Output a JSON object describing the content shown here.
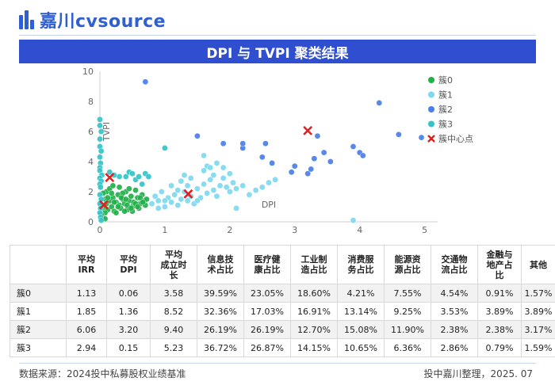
{
  "brand": {
    "name": "嘉川cvsource",
    "color": "#2f5fd0"
  },
  "title": "DPI 与 TVPI 聚类结果",
  "colors": {
    "banner": "#2f4fd0",
    "cluster0": "#22b04b",
    "cluster1": "#7fd8ef",
    "cluster2": "#4a7ee8",
    "cluster3": "#33c4c9",
    "center": "#e02020"
  },
  "chart_data": {
    "type": "scatter",
    "title": "DPI 与 TVPI 聚类结果",
    "xlabel": "DPI",
    "ylabel": "TVPI",
    "xlim": [
      0,
      5.2
    ],
    "ylim": [
      0,
      10
    ],
    "xticks": [
      0,
      1,
      2,
      3,
      4,
      5
    ],
    "yticks": [
      0,
      2,
      4,
      6,
      8,
      10
    ],
    "legend": {
      "position": "top-right",
      "entries": [
        "簇0",
        "簇1",
        "簇2",
        "簇3",
        "簇中心点"
      ]
    },
    "series": [
      {
        "name": "簇0",
        "points": [
          [
            0.02,
            1.1
          ],
          [
            0.05,
            0.9
          ],
          [
            0.08,
            1.5
          ],
          [
            0.1,
            1.2
          ],
          [
            0.12,
            0.8
          ],
          [
            0.15,
            1.4
          ],
          [
            0.18,
            1.0
          ],
          [
            0.2,
            1.6
          ],
          [
            0.22,
            0.7
          ],
          [
            0.25,
            1.3
          ],
          [
            0.28,
            1.8
          ],
          [
            0.3,
            1.1
          ],
          [
            0.32,
            0.9
          ],
          [
            0.35,
            1.5
          ],
          [
            0.38,
            1.2
          ],
          [
            0.4,
            2.0
          ],
          [
            0.42,
            0.8
          ],
          [
            0.45,
            1.4
          ],
          [
            0.48,
            1.7
          ],
          [
            0.5,
            1.0
          ],
          [
            0.52,
            1.3
          ],
          [
            0.55,
            2.1
          ],
          [
            0.58,
            1.6
          ],
          [
            0.6,
            0.9
          ],
          [
            0.62,
            1.2
          ],
          [
            0.65,
            1.8
          ],
          [
            0.68,
            1.4
          ],
          [
            0.7,
            1.1
          ],
          [
            0.1,
            2.0
          ],
          [
            0.15,
            2.2
          ],
          [
            0.2,
            2.4
          ],
          [
            0.05,
            1.9
          ],
          [
            0.3,
            2.3
          ],
          [
            0.35,
            1.9
          ],
          [
            0.45,
            2.2
          ],
          [
            0.25,
            0.6
          ],
          [
            0.38,
            0.7
          ],
          [
            0.5,
            0.7
          ],
          [
            0.08,
            0.6
          ],
          [
            0.72,
            1.5
          ],
          [
            0.18,
            1.9
          ],
          [
            0.28,
            1.0
          ],
          [
            0.42,
            1.1
          ],
          [
            0.62,
            1.6
          ],
          [
            0.55,
            1.2
          ],
          [
            0.33,
            1.6
          ],
          [
            0.48,
            0.9
          ],
          [
            0.12,
            1.6
          ],
          [
            0.22,
            1.3
          ],
          [
            0.4,
            1.5
          ],
          [
            0.58,
            1.0
          ],
          [
            0.66,
            1.3
          ],
          [
            0.04,
            0.3
          ],
          [
            0.08,
            0.2
          ],
          [
            0.02,
            0.5
          ]
        ]
      },
      {
        "name": "簇1",
        "points": [
          [
            0.8,
            1.2
          ],
          [
            0.9,
            1.4
          ],
          [
            1.0,
            1.0
          ],
          [
            1.05,
            1.6
          ],
          [
            1.1,
            1.3
          ],
          [
            1.15,
            1.8
          ],
          [
            1.2,
            1.1
          ],
          [
            1.25,
            1.5
          ],
          [
            1.3,
            2.0
          ],
          [
            1.35,
            1.4
          ],
          [
            1.4,
            1.7
          ],
          [
            1.45,
            1.2
          ],
          [
            1.5,
            2.2
          ],
          [
            1.55,
            1.6
          ],
          [
            1.6,
            2.5
          ],
          [
            1.65,
            1.9
          ],
          [
            1.7,
            2.8
          ],
          [
            1.75,
            2.1
          ],
          [
            1.8,
            1.7
          ],
          [
            1.85,
            2.4
          ],
          [
            1.9,
            2.9
          ],
          [
            1.95,
            2.3
          ],
          [
            2.0,
            2.0
          ],
          [
            2.05,
            2.6
          ],
          [
            2.1,
            2.2
          ],
          [
            2.2,
            2.4
          ],
          [
            2.3,
            1.8
          ],
          [
            2.4,
            2.1
          ],
          [
            2.5,
            2.3
          ],
          [
            2.6,
            2.6
          ],
          [
            2.7,
            2.8
          ],
          [
            1.6,
            3.4
          ],
          [
            1.65,
            3.7
          ],
          [
            1.7,
            3.6
          ],
          [
            1.8,
            3.9
          ],
          [
            1.9,
            3.6
          ],
          [
            1.3,
            3.1
          ],
          [
            1.4,
            2.9
          ],
          [
            1.1,
            2.4
          ],
          [
            1.25,
            2.7
          ],
          [
            1.6,
            4.4
          ],
          [
            0.85,
            1.7
          ],
          [
            0.95,
            2.0
          ],
          [
            1.5,
            1.4
          ],
          [
            1.75,
            3.1
          ],
          [
            2.0,
            3.2
          ],
          [
            0.9,
            0.9
          ],
          [
            3.9,
            0.1
          ],
          [
            2.1,
            0.9
          ],
          [
            1.0,
            1.4
          ],
          [
            1.2,
            2.1
          ],
          [
            1.35,
            2.4
          ]
        ]
      },
      {
        "name": "簇2",
        "points": [
          [
            0.7,
            9.3
          ],
          [
            1.5,
            5.7
          ],
          [
            1.9,
            5.2
          ],
          [
            2.2,
            4.9
          ],
          [
            2.2,
            5.2
          ],
          [
            2.55,
            5.2
          ],
          [
            2.5,
            4.3
          ],
          [
            2.65,
            3.9
          ],
          [
            2.95,
            3.3
          ],
          [
            3.0,
            3.7
          ],
          [
            3.2,
            3.2
          ],
          [
            3.3,
            4.2
          ],
          [
            3.35,
            5.7
          ],
          [
            3.45,
            4.6
          ],
          [
            3.55,
            4.0
          ],
          [
            3.9,
            5.0
          ],
          [
            4.0,
            4.6
          ],
          [
            4.05,
            4.4
          ],
          [
            4.3,
            7.9
          ],
          [
            4.6,
            5.8
          ],
          [
            4.95,
            5.6
          ],
          [
            3.25,
            3.5
          ]
        ]
      },
      {
        "name": "簇3",
        "points": [
          [
            0.0,
            6.8
          ],
          [
            0.0,
            6.4
          ],
          [
            0.02,
            6.0
          ],
          [
            0.0,
            5.5
          ],
          [
            0.0,
            5.0
          ],
          [
            0.02,
            4.7
          ],
          [
            0.0,
            4.3
          ],
          [
            0.01,
            3.9
          ],
          [
            0.0,
            3.6
          ],
          [
            0.0,
            3.4
          ],
          [
            0.03,
            3.1
          ],
          [
            0.0,
            2.9
          ],
          [
            0.02,
            2.7
          ],
          [
            0.0,
            2.5
          ],
          [
            0.01,
            2.3
          ],
          [
            0.0,
            1.8
          ],
          [
            0.02,
            1.5
          ],
          [
            0.0,
            1.2
          ],
          [
            0.01,
            0.9
          ],
          [
            0.0,
            0.6
          ],
          [
            0.01,
            0.3
          ],
          [
            0.02,
            0.1
          ],
          [
            0.15,
            3.3
          ],
          [
            0.22,
            3.1
          ],
          [
            0.3,
            3.0
          ],
          [
            0.4,
            3.0
          ],
          [
            0.45,
            3.3
          ],
          [
            0.55,
            2.8
          ],
          [
            0.6,
            3.0
          ],
          [
            0.5,
            3.2
          ],
          [
            0.7,
            3.2
          ],
          [
            0.75,
            3.0
          ],
          [
            1.0,
            4.9
          ],
          [
            0.65,
            2.5
          ]
        ]
      },
      {
        "name": "簇中心点",
        "points": [
          [
            0.06,
            1.13
          ],
          [
            0.15,
            2.94
          ],
          [
            1.36,
            1.85
          ],
          [
            3.2,
            6.06
          ]
        ]
      }
    ]
  },
  "table": {
    "headers": [
      "",
      "平均\nIRR",
      "平均\nDPI",
      "平均\n成立时\n长",
      "信息技\n术占比",
      "医疗健\n康占比",
      "工业制\n造占比",
      "消费服\n务占比",
      "能源资\n源占比",
      "交通物\n流占比",
      "金融与\n地产占\n比",
      "其他"
    ],
    "rows": [
      [
        "簇0",
        "1.13",
        "0.06",
        "3.58",
        "39.59%",
        "23.05%",
        "18.60%",
        "4.21%",
        "7.55%",
        "4.54%",
        "0.91%",
        "1.57%"
      ],
      [
        "簇1",
        "1.85",
        "1.36",
        "8.52",
        "32.36%",
        "17.03%",
        "16.91%",
        "13.14%",
        "9.25%",
        "3.53%",
        "3.89%",
        "3.89%"
      ],
      [
        "簇2",
        "6.06",
        "3.20",
        "9.40",
        "26.19%",
        "26.19%",
        "12.70%",
        "15.08%",
        "11.90%",
        "2.38%",
        "2.38%",
        "3.17%"
      ],
      [
        "簇3",
        "2.94",
        "0.15",
        "5.23",
        "36.72%",
        "26.87%",
        "14.15%",
        "10.65%",
        "6.36%",
        "2.86%",
        "0.79%",
        "1.59%"
      ]
    ]
  },
  "footer": {
    "source": "数据来源：2024投中私募股权业绩基准",
    "credit": "投中嘉川整理，2025. 07"
  }
}
